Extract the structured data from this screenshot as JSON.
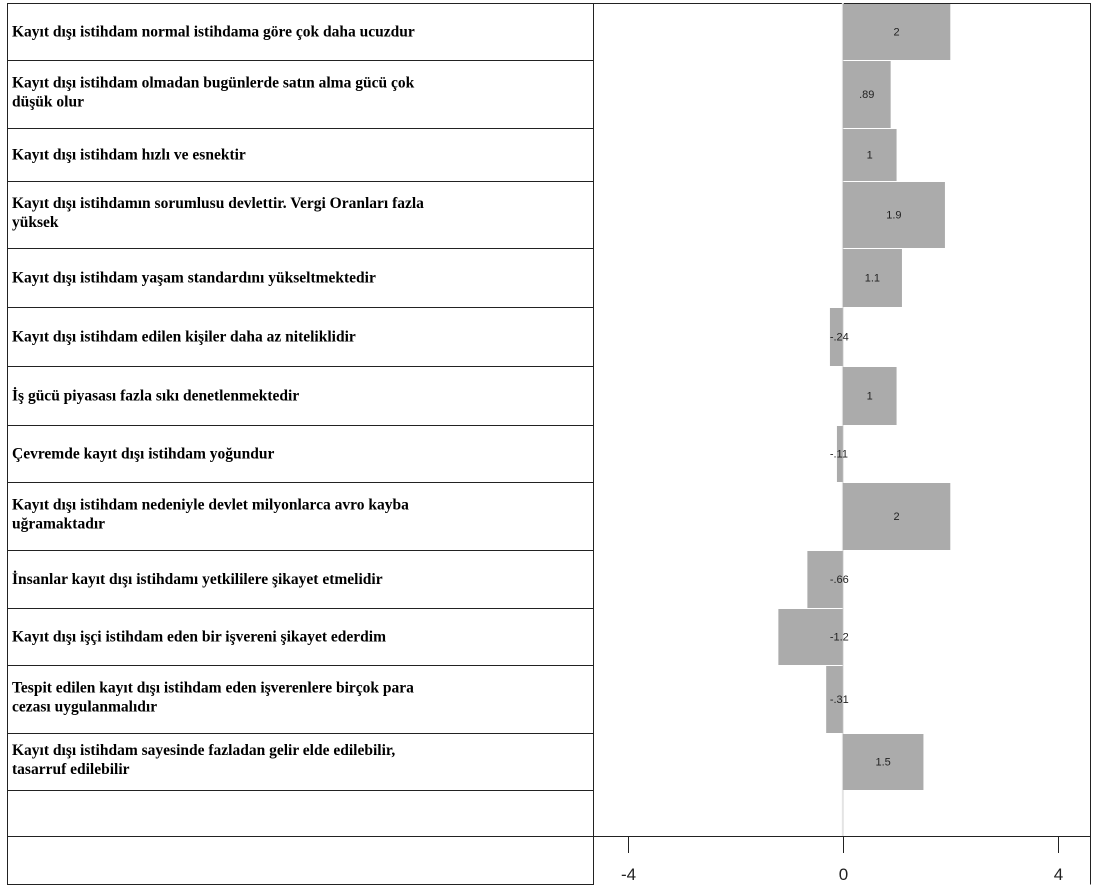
{
  "chart_data": {
    "type": "bar",
    "orientation": "horizontal",
    "categories": [
      [
        "Kayıt dışı istihdam normal istihdama göre çok daha ucuzdur"
      ],
      [
        "Kayıt dışı istihdam olmadan bugünlerde satın alma gücü çok",
        "düşük olur"
      ],
      [
        "Kayıt dışı istihdam hızlı ve esnektir"
      ],
      [
        "Kayıt dışı istihdamın sorumlusu devlettir. Vergi Oranları fazla",
        "yüksek"
      ],
      [
        "Kayıt dışı istihdam yaşam standardını yükseltmektedir"
      ],
      [
        "Kayıt dışı istihdam edilen kişiler daha az niteliklidir"
      ],
      [
        "İş gücü piyasası fazla sıkı denetlenmektedir"
      ],
      [
        "Çevremde kayıt dışı istihdam yoğundur"
      ],
      [
        "Kayıt dışı istihdam nedeniyle devlet milyonlarca avro kayba",
        "uğramaktadır"
      ],
      [
        "İnsanlar kayıt dışı istihdamı yetkililere şikayet etmelidir"
      ],
      [
        "Kayıt dışı işçi istihdam eden bir işvereni şikayet ederdim"
      ],
      [
        "Tespit edilen kayıt dışı istihdam eden işverenlere birçok para",
        "cezası uygulanmalıdır"
      ],
      [
        "Kayıt dışı istihdam sayesinde fazladan gelir elde edilebilir,",
        "tasarruf edilebilir"
      ]
    ],
    "values": [
      2,
      0.89,
      1,
      1.9,
      1.1,
      -0.24,
      1,
      -0.11,
      2,
      -0.66,
      -1.2,
      -0.31,
      1.5
    ],
    "value_labels": [
      "2",
      ".89",
      "1",
      "1.9",
      "1.1",
      "-.24",
      "1",
      "-.11",
      "2",
      "-.66",
      "-1.2",
      "-.31",
      "1.5"
    ],
    "xlim": [
      -4.65,
      4.6
    ],
    "ticks": [
      -4,
      0,
      4
    ],
    "tick_labels": [
      "-4",
      "0",
      "4"
    ],
    "bar_color": "#ababab",
    "zero_line_color": "#e4e4e4",
    "grid": false
  }
}
